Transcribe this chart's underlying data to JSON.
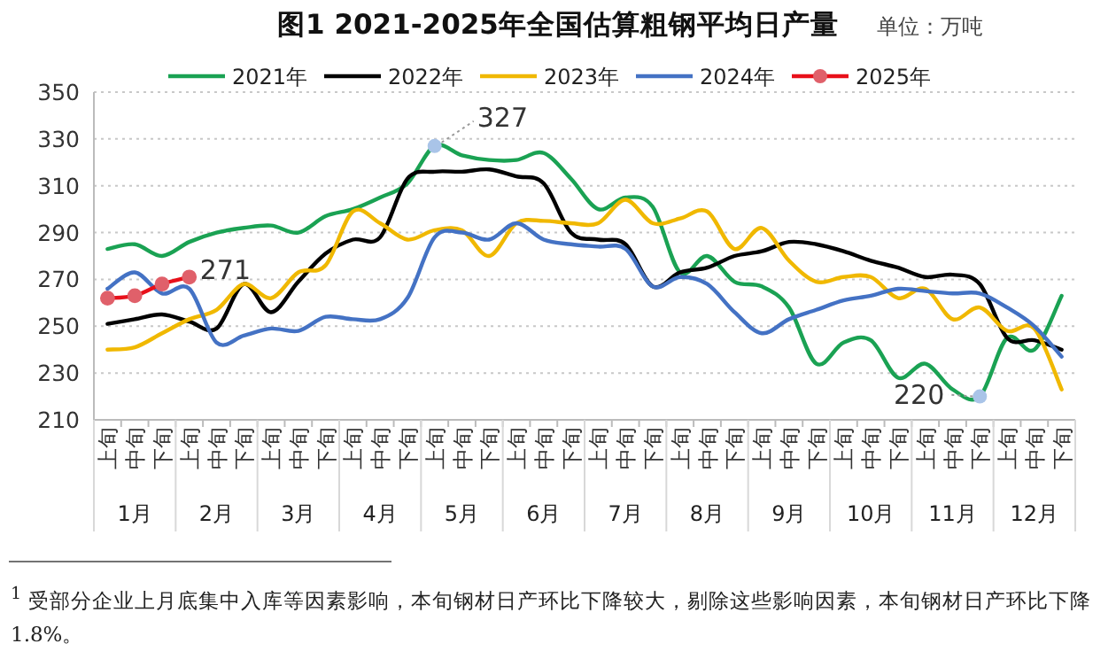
{
  "chart_data": {
    "type": "line",
    "title": "图1  2021-2025年全国估算粗钢平均日产量",
    "subtitle": "单位：万吨",
    "categories": [
      "上旬",
      "中旬",
      "下旬",
      "上旬",
      "中旬",
      "下旬",
      "上旬",
      "中旬",
      "下旬",
      "上旬",
      "中旬",
      "下旬",
      "上旬",
      "中旬",
      "下旬",
      "上旬",
      "中旬",
      "下旬",
      "上旬",
      "中旬",
      "下旬",
      "上旬",
      "中旬",
      "下旬",
      "上旬",
      "中旬",
      "下旬",
      "上旬",
      "中旬",
      "下旬",
      "上旬",
      "中旬",
      "下旬",
      "上旬",
      "中旬",
      "下旬"
    ],
    "series": [
      {
        "name": "2021年",
        "color": "#1aa253",
        "values": [
          283,
          285,
          280,
          286,
          290,
          292,
          293,
          290,
          297,
          300,
          305,
          311,
          327,
          323,
          321,
          321,
          324,
          313,
          300,
          305,
          301,
          273,
          280,
          269,
          267,
          258,
          234,
          243,
          244,
          228,
          234,
          223,
          220,
          245,
          240,
          263
        ]
      },
      {
        "name": "2022年",
        "color": "#000000",
        "values": [
          251,
          253,
          255,
          252,
          249,
          268,
          256,
          269,
          281,
          287,
          288,
          313,
          316,
          316,
          317,
          314,
          311,
          290,
          287,
          285,
          267,
          273,
          275,
          280,
          282,
          286,
          285,
          282,
          278,
          275,
          271,
          272,
          268,
          245,
          244,
          240
        ]
      },
      {
        "name": "2023年",
        "color": "#f0b800",
        "values": [
          240,
          241,
          247,
          253,
          257,
          268,
          262,
          273,
          276,
          299,
          294,
          287,
          291,
          291,
          280,
          294,
          295,
          294,
          294,
          304,
          294,
          296,
          299,
          283,
          292,
          278,
          269,
          271,
          271,
          262,
          266,
          253,
          258,
          248,
          249,
          223
        ]
      },
      {
        "name": "2024年",
        "color": "#4472c4",
        "values": [
          266,
          273,
          264,
          266,
          243,
          246,
          249,
          248,
          254,
          253,
          253,
          262,
          288,
          290,
          287,
          294,
          287,
          285,
          284,
          283,
          267,
          271,
          268,
          256,
          247,
          253,
          257,
          261,
          263,
          266,
          265,
          264,
          264,
          258,
          250,
          237
        ]
      },
      {
        "name": "2025年",
        "color": "#e8101a",
        "marker": "circle",
        "values": [
          262,
          263,
          268,
          271,
          null,
          null,
          null,
          null,
          null,
          null,
          null,
          null,
          null,
          null,
          null,
          null,
          null,
          null,
          null,
          null,
          null,
          null,
          null,
          null,
          null,
          null,
          null,
          null,
          null,
          null,
          null,
          null,
          null,
          null,
          null,
          null
        ]
      }
    ],
    "ylim": [
      210,
      350
    ],
    "yticks": [
      210,
      230,
      250,
      270,
      290,
      310,
      330,
      350
    ],
    "grid": "y",
    "legend": "top",
    "annotations": [
      "1月",
      "2月",
      "3月",
      "4月",
      "5月",
      "6月",
      "7月",
      "8月",
      "9月",
      "10月",
      "11月",
      "12月",
      "271",
      "327",
      "220",
      "$^{1}$ 受部分企业上月底集中入库等因素影响，本旬钢材日产环比下降较大，剔除这些影响因素，本旬钢材日产环比下降 1.8%。"
    ]
  }
}
